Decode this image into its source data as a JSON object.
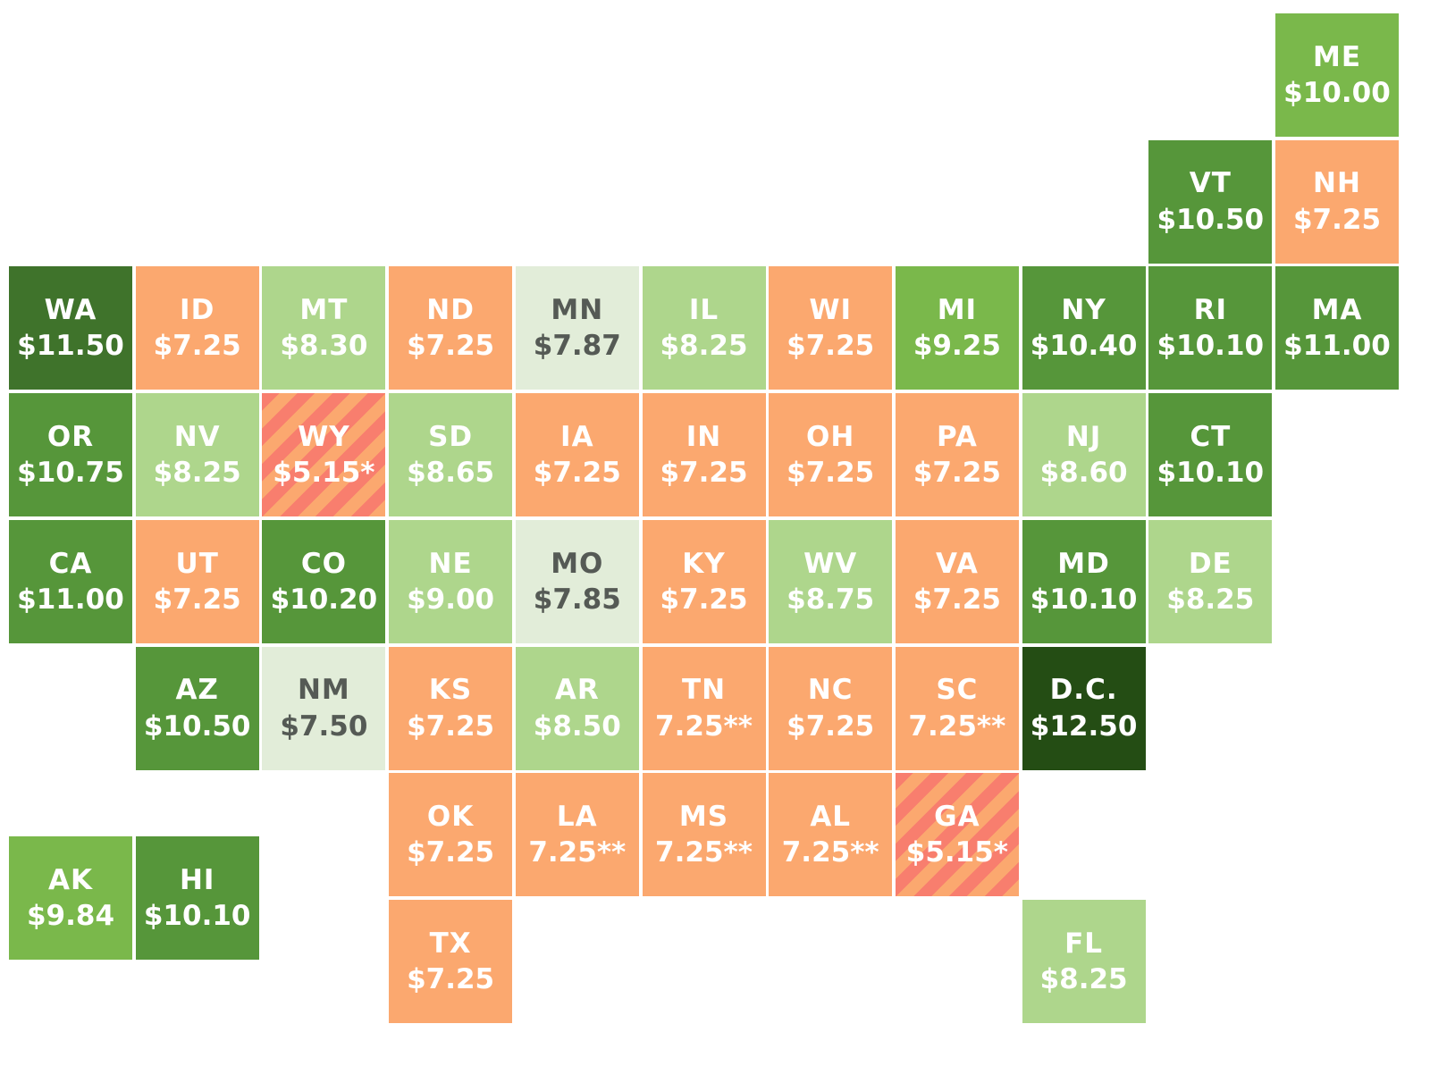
{
  "colors": {
    "orange": "#fba86f",
    "hatch_red": "#f87e6e",
    "pale_green": "#e2edd9",
    "light_green": "#aed68c",
    "green": "#7ab84b",
    "medium_green": "#56963a",
    "dark_green": "#3f732b",
    "darkest_green": "#244d14"
  },
  "states": [
    {
      "abbr": "ME",
      "wage": "$10.00",
      "col": 10,
      "row": 0,
      "color": "green"
    },
    {
      "abbr": "VT",
      "wage": "$10.50",
      "col": 9,
      "row": 1,
      "color": "medium_green"
    },
    {
      "abbr": "NH",
      "wage": "$7.25",
      "col": 10,
      "row": 1,
      "color": "orange"
    },
    {
      "abbr": "WA",
      "wage": "$11.50",
      "col": 0,
      "row": 2,
      "color": "dark_green"
    },
    {
      "abbr": "ID",
      "wage": "$7.25",
      "col": 1,
      "row": 2,
      "color": "orange"
    },
    {
      "abbr": "MT",
      "wage": "$8.30",
      "col": 2,
      "row": 2,
      "color": "light_green"
    },
    {
      "abbr": "ND",
      "wage": "$7.25",
      "col": 3,
      "row": 2,
      "color": "orange"
    },
    {
      "abbr": "MN",
      "wage": "$7.87",
      "col": 4,
      "row": 2,
      "color": "pale_green"
    },
    {
      "abbr": "IL",
      "wage": "$8.25",
      "col": 5,
      "row": 2,
      "color": "light_green"
    },
    {
      "abbr": "WI",
      "wage": "$7.25",
      "col": 6,
      "row": 2,
      "color": "orange"
    },
    {
      "abbr": "MI",
      "wage": "$9.25",
      "col": 7,
      "row": 2,
      "color": "green"
    },
    {
      "abbr": "NY",
      "wage": "$10.40",
      "col": 8,
      "row": 2,
      "color": "medium_green"
    },
    {
      "abbr": "RI",
      "wage": "$10.10",
      "col": 9,
      "row": 2,
      "color": "medium_green"
    },
    {
      "abbr": "MA",
      "wage": "$11.00",
      "col": 10,
      "row": 2,
      "color": "medium_green"
    },
    {
      "abbr": "OR",
      "wage": "$10.75",
      "col": 0,
      "row": 3,
      "color": "medium_green"
    },
    {
      "abbr": "NV",
      "wage": "$8.25",
      "col": 1,
      "row": 3,
      "color": "light_green"
    },
    {
      "abbr": "WY",
      "wage": "$5.15*",
      "col": 2,
      "row": 3,
      "color": "orange",
      "hatched": true
    },
    {
      "abbr": "SD",
      "wage": "$8.65",
      "col": 3,
      "row": 3,
      "color": "light_green"
    },
    {
      "abbr": "IA",
      "wage": "$7.25",
      "col": 4,
      "row": 3,
      "color": "orange"
    },
    {
      "abbr": "IN",
      "wage": "$7.25",
      "col": 5,
      "row": 3,
      "color": "orange"
    },
    {
      "abbr": "OH",
      "wage": "$7.25",
      "col": 6,
      "row": 3,
      "color": "orange"
    },
    {
      "abbr": "PA",
      "wage": "$7.25",
      "col": 7,
      "row": 3,
      "color": "orange"
    },
    {
      "abbr": "NJ",
      "wage": "$8.60",
      "col": 8,
      "row": 3,
      "color": "light_green"
    },
    {
      "abbr": "CT",
      "wage": "$10.10",
      "col": 9,
      "row": 3,
      "color": "medium_green"
    },
    {
      "abbr": "CA",
      "wage": "$11.00",
      "col": 0,
      "row": 4,
      "color": "medium_green"
    },
    {
      "abbr": "UT",
      "wage": "$7.25",
      "col": 1,
      "row": 4,
      "color": "orange"
    },
    {
      "abbr": "CO",
      "wage": "$10.20",
      "col": 2,
      "row": 4,
      "color": "medium_green"
    },
    {
      "abbr": "NE",
      "wage": "$9.00",
      "col": 3,
      "row": 4,
      "color": "light_green"
    },
    {
      "abbr": "MO",
      "wage": "$7.85",
      "col": 4,
      "row": 4,
      "color": "pale_green"
    },
    {
      "abbr": "KY",
      "wage": "$7.25",
      "col": 5,
      "row": 4,
      "color": "orange"
    },
    {
      "abbr": "WV",
      "wage": "$8.75",
      "col": 6,
      "row": 4,
      "color": "light_green"
    },
    {
      "abbr": "VA",
      "wage": "$7.25",
      "col": 7,
      "row": 4,
      "color": "orange"
    },
    {
      "abbr": "MD",
      "wage": "$10.10",
      "col": 8,
      "row": 4,
      "color": "medium_green"
    },
    {
      "abbr": "DE",
      "wage": "$8.25",
      "col": 9,
      "row": 4,
      "color": "light_green"
    },
    {
      "abbr": "AZ",
      "wage": "$10.50",
      "col": 1,
      "row": 5,
      "color": "medium_green"
    },
    {
      "abbr": "NM",
      "wage": "$7.50",
      "col": 2,
      "row": 5,
      "color": "pale_green"
    },
    {
      "abbr": "KS",
      "wage": "$7.25",
      "col": 3,
      "row": 5,
      "color": "orange"
    },
    {
      "abbr": "AR",
      "wage": "$8.50",
      "col": 4,
      "row": 5,
      "color": "light_green"
    },
    {
      "abbr": "TN",
      "wage": "7.25**",
      "col": 5,
      "row": 5,
      "color": "orange"
    },
    {
      "abbr": "NC",
      "wage": "$7.25",
      "col": 6,
      "row": 5,
      "color": "orange"
    },
    {
      "abbr": "SC",
      "wage": "7.25**",
      "col": 7,
      "row": 5,
      "color": "orange"
    },
    {
      "abbr": "D.C.",
      "wage": "$12.50",
      "col": 8,
      "row": 5,
      "color": "darkest_green"
    },
    {
      "abbr": "OK",
      "wage": "$7.25",
      "col": 3,
      "row": 6,
      "color": "orange"
    },
    {
      "abbr": "LA",
      "wage": "7.25**",
      "col": 4,
      "row": 6,
      "color": "orange"
    },
    {
      "abbr": "MS",
      "wage": "7.25**",
      "col": 5,
      "row": 6,
      "color": "orange"
    },
    {
      "abbr": "AL",
      "wage": "7.25**",
      "col": 6,
      "row": 6,
      "color": "orange"
    },
    {
      "abbr": "GA",
      "wage": "$5.15*",
      "col": 7,
      "row": 6,
      "color": "orange",
      "hatched": true
    },
    {
      "abbr": "AK",
      "wage": "$9.84",
      "col": 0,
      "row": 6.5,
      "color": "green"
    },
    {
      "abbr": "HI",
      "wage": "$10.10",
      "col": 1,
      "row": 6.5,
      "color": "medium_green"
    },
    {
      "abbr": "TX",
      "wage": "$7.25",
      "col": 3,
      "row": 7,
      "color": "orange"
    },
    {
      "abbr": "FL",
      "wage": "$8.25",
      "col": 8,
      "row": 7,
      "color": "light_green"
    }
  ]
}
